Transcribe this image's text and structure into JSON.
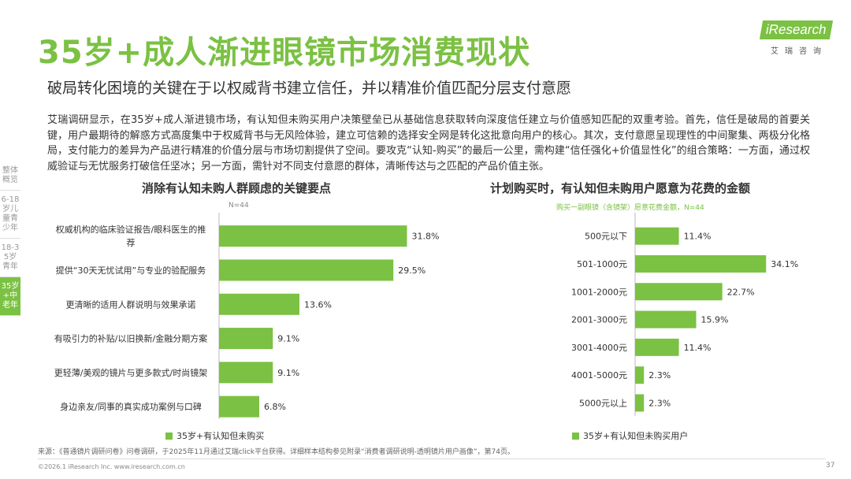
{
  "header": {
    "title": "35岁+成人渐进眼镜市场消费现状",
    "subtitle": "破局转化困境的关键在于以权威背书建立信任，并以精准价值匹配分层支付意愿"
  },
  "logo": {
    "main": "iResearch",
    "sub": "艾瑞咨询"
  },
  "body_text": "艾瑞调研显示，在35岁+成人渐进镜市场，有认知但未购买用户决策壁垒已从基础信息获取转向深度信任建立与价值感知匹配的双重考验。首先，信任是破局的首要关键，用户最期待的解惑方式高度集中于权威背书与无风险体验，建立可信赖的选择安全网是转化这批意向用户的核心。其次，支付意愿呈现理性的中间聚集、两极分化格局，支付能力的差异为产品进行精准的价值分层与市场切割提供了空间。要攻克“认知-购买”的最后一公里，需构建“信任强化+价值显性化”的组合策略：一方面，通过权威验证与无忧服务打破信任坚冰；另一方面，需针对不同支付意愿的群体，清晰传达与之匹配的产品价值主张。",
  "sidebar": [
    {
      "label": "整体概览",
      "active": false
    },
    {
      "label": "6-18岁儿童青少年",
      "active": false
    },
    {
      "label": "18-35岁青年",
      "active": false
    },
    {
      "label": "35岁+中老年",
      "active": true
    }
  ],
  "chart_data": [
    {
      "type": "bar",
      "orientation": "horizontal",
      "title": "消除有认知未购人群顾虑的关键要点",
      "note": "N=44",
      "categories": [
        "权威机构的临床验证报告/眼科医生的推荐",
        "提供“30天无忧试用”与专业的验配服务",
        "更清晰的适用人群说明与效果承诺",
        "有吸引力的补贴/以旧换新/金融分期方案",
        "更轻薄/美观的镜片与更多款式/时尚镜架",
        "身边亲友/同事的真实成功案例与口碑"
      ],
      "label_lines": [
        [
          "权威机构的临床验证报告/眼科医生的推",
          "荐"
        ],
        [
          "提供“30天无忧试用”与专业的验配服务"
        ],
        [
          "更清晰的适用人群说明与效果承诺"
        ],
        [
          "有吸引力的补贴/以旧换新/金融分期方案"
        ],
        [
          "更轻薄/美观的镜片与更多款式/时尚镜架"
        ],
        [
          "身边亲友/同事的真实成功案例与口碑"
        ]
      ],
      "values": [
        31.8,
        29.5,
        13.6,
        9.1,
        9.1,
        6.8
      ],
      "value_labels": [
        "31.8%",
        "29.5%",
        "13.6%",
        "9.1%",
        "9.1%",
        "6.8%"
      ],
      "unit": "%",
      "xlim": [
        0,
        40
      ],
      "legend": "35岁+有认知但未购买"
    },
    {
      "type": "bar",
      "orientation": "horizontal",
      "title": "计划购买时，有认知但未购用户愿意为花费的金额",
      "note": "购买一副眼镜（含镜架）愿意花费金额，N=44",
      "categories": [
        "500元以下",
        "501-1000元",
        "1001-2000元",
        "2001-3000元",
        "3001-4000元",
        "4001-5000元",
        "5000元以上"
      ],
      "values": [
        11.4,
        34.1,
        22.7,
        15.9,
        11.4,
        2.3,
        2.3
      ],
      "value_labels": [
        "11.4%",
        "34.1%",
        "22.7%",
        "15.9%",
        "11.4%",
        "2.3%",
        "2.3%"
      ],
      "unit": "%",
      "xlim": [
        0,
        40
      ],
      "legend": "35岁+有认知但未购买用户"
    }
  ],
  "source": "来源：《普通镜片调研问卷》问卷调研，于2025年11月通过艾瑞click平台获得。详细样本结构参见附录“消费者调研说明-透明镜片用户画像”，第74页。",
  "footer": "©2026.1 iResearch Inc.                              www.iresearch.com.cn",
  "page_number": "37",
  "colors": {
    "accent": "#7bc143"
  }
}
